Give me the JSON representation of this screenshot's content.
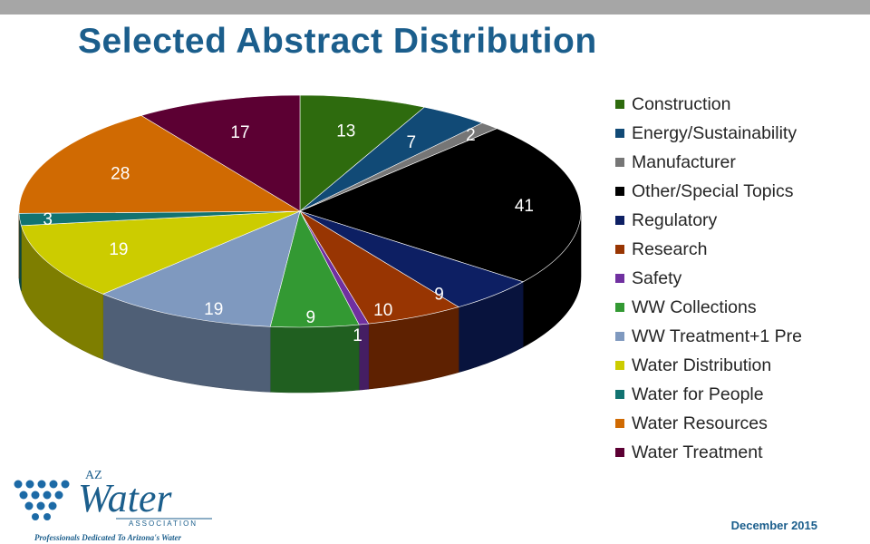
{
  "title": "Selected Abstract Distribution",
  "footer": {
    "date": "December 2015"
  },
  "logo": {
    "top": "AZ",
    "main": "Water",
    "sub": "ASSOCIATION",
    "tagline": "Professionals Dedicated To Arizona's Water"
  },
  "chart_data": {
    "type": "pie",
    "title": "Selected Abstract Distribution",
    "style": "3d",
    "legend_position": "right",
    "slices": [
      {
        "label": "Construction",
        "value": 13,
        "color": "#2e6b0e"
      },
      {
        "label": "Energy/Sustainability",
        "value": 7,
        "color": "#114a76"
      },
      {
        "label": "Manufacturer",
        "value": 2,
        "color": "#767676"
      },
      {
        "label": "Other/Special Topics",
        "value": 41,
        "color": "#000000"
      },
      {
        "label": "Regulatory",
        "value": 9,
        "color": "#0d1f63"
      },
      {
        "label": "Research",
        "value": 10,
        "color": "#983502"
      },
      {
        "label": "Safety",
        "value": 1,
        "color": "#7030a0"
      },
      {
        "label": "WW Collections",
        "value": 9,
        "color": "#339933"
      },
      {
        "label": "WW Treatment+1 Pre",
        "value": 19,
        "color": "#7f99bf"
      },
      {
        "label": "Water Distribution",
        "value": 19,
        "color": "#cccc00"
      },
      {
        "label": "Water for People",
        "value": 3,
        "color": "#127371"
      },
      {
        "label": "Water Resources",
        "value": 28,
        "color": "#d06a02"
      },
      {
        "label": "Water Treatment",
        "value": 17,
        "color": "#5c0033"
      }
    ]
  }
}
